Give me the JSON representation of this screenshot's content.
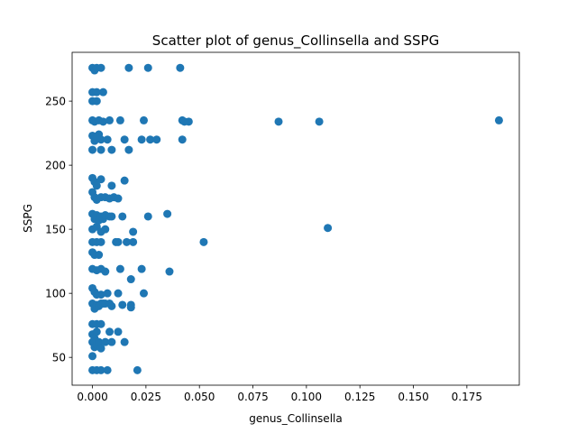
{
  "chart_data": {
    "type": "scatter",
    "title": "Scatter plot of genus_Collinsella and SSPG",
    "xlabel": "genus_Collinsella",
    "ylabel": "SSPG",
    "xlim": [
      -0.0095,
      0.1995
    ],
    "ylim": [
      28.3,
      288.1
    ],
    "xticks": [
      0.0,
      0.025,
      0.05,
      0.075,
      0.1,
      0.125,
      0.15,
      0.175
    ],
    "xtick_labels": [
      "0.000",
      "0.025",
      "0.050",
      "0.075",
      "0.100",
      "0.125",
      "0.150",
      "0.175"
    ],
    "yticks": [
      50,
      100,
      150,
      200,
      250
    ],
    "ytick_labels": [
      "50",
      "100",
      "150",
      "200",
      "250"
    ],
    "grid": false,
    "marker_color": "#1f77b4",
    "series": [
      {
        "points": [
          {
            "x": 0.0,
            "y": 276
          },
          {
            "x": 0.001,
            "y": 274
          },
          {
            "x": 0.002,
            "y": 276
          },
          {
            "x": 0.004,
            "y": 276
          },
          {
            "x": 0.017,
            "y": 276
          },
          {
            "x": 0.026,
            "y": 276
          },
          {
            "x": 0.041,
            "y": 276
          },
          {
            "x": 0.0,
            "y": 257
          },
          {
            "x": 0.002,
            "y": 257
          },
          {
            "x": 0.005,
            "y": 257
          },
          {
            "x": 0.0,
            "y": 250
          },
          {
            "x": 0.002,
            "y": 250
          },
          {
            "x": 0.0,
            "y": 235
          },
          {
            "x": 0.001,
            "y": 234
          },
          {
            "x": 0.003,
            "y": 235
          },
          {
            "x": 0.005,
            "y": 234
          },
          {
            "x": 0.008,
            "y": 235
          },
          {
            "x": 0.013,
            "y": 235
          },
          {
            "x": 0.024,
            "y": 235
          },
          {
            "x": 0.042,
            "y": 235
          },
          {
            "x": 0.043,
            "y": 234
          },
          {
            "x": 0.045,
            "y": 234
          },
          {
            "x": 0.087,
            "y": 234
          },
          {
            "x": 0.106,
            "y": 234
          },
          {
            "x": 0.19,
            "y": 235
          },
          {
            "x": 0.0,
            "y": 223
          },
          {
            "x": 0.001,
            "y": 219
          },
          {
            "x": 0.003,
            "y": 224
          },
          {
            "x": 0.004,
            "y": 220
          },
          {
            "x": 0.002,
            "y": 221
          },
          {
            "x": 0.007,
            "y": 220
          },
          {
            "x": 0.015,
            "y": 220
          },
          {
            "x": 0.023,
            "y": 220
          },
          {
            "x": 0.027,
            "y": 220
          },
          {
            "x": 0.03,
            "y": 220
          },
          {
            "x": 0.042,
            "y": 220
          },
          {
            "x": 0.0,
            "y": 212
          },
          {
            "x": 0.004,
            "y": 212
          },
          {
            "x": 0.009,
            "y": 212
          },
          {
            "x": 0.017,
            "y": 212
          },
          {
            "x": 0.0,
            "y": 190
          },
          {
            "x": 0.001,
            "y": 187
          },
          {
            "x": 0.002,
            "y": 184
          },
          {
            "x": 0.004,
            "y": 189
          },
          {
            "x": 0.009,
            "y": 184
          },
          {
            "x": 0.015,
            "y": 188
          },
          {
            "x": 0.0,
            "y": 179
          },
          {
            "x": 0.001,
            "y": 175
          },
          {
            "x": 0.002,
            "y": 173
          },
          {
            "x": 0.004,
            "y": 175
          },
          {
            "x": 0.006,
            "y": 175
          },
          {
            "x": 0.008,
            "y": 174
          },
          {
            "x": 0.01,
            "y": 175
          },
          {
            "x": 0.012,
            "y": 174
          },
          {
            "x": 0.0,
            "y": 162
          },
          {
            "x": 0.001,
            "y": 158
          },
          {
            "x": 0.002,
            "y": 161
          },
          {
            "x": 0.003,
            "y": 157
          },
          {
            "x": 0.004,
            "y": 160
          },
          {
            "x": 0.005,
            "y": 158
          },
          {
            "x": 0.006,
            "y": 161
          },
          {
            "x": 0.008,
            "y": 160
          },
          {
            "x": 0.009,
            "y": 160
          },
          {
            "x": 0.014,
            "y": 160
          },
          {
            "x": 0.026,
            "y": 160
          },
          {
            "x": 0.035,
            "y": 162
          },
          {
            "x": 0.0,
            "y": 150
          },
          {
            "x": 0.002,
            "y": 152
          },
          {
            "x": 0.004,
            "y": 148
          },
          {
            "x": 0.006,
            "y": 150
          },
          {
            "x": 0.019,
            "y": 148
          },
          {
            "x": 0.11,
            "y": 151
          },
          {
            "x": 0.0,
            "y": 140
          },
          {
            "x": 0.002,
            "y": 140
          },
          {
            "x": 0.004,
            "y": 140
          },
          {
            "x": 0.011,
            "y": 140
          },
          {
            "x": 0.012,
            "y": 140
          },
          {
            "x": 0.016,
            "y": 140
          },
          {
            "x": 0.019,
            "y": 140
          },
          {
            "x": 0.052,
            "y": 140
          },
          {
            "x": 0.0,
            "y": 132
          },
          {
            "x": 0.001,
            "y": 130
          },
          {
            "x": 0.003,
            "y": 130
          },
          {
            "x": 0.0,
            "y": 119
          },
          {
            "x": 0.002,
            "y": 118
          },
          {
            "x": 0.004,
            "y": 119
          },
          {
            "x": 0.006,
            "y": 117
          },
          {
            "x": 0.013,
            "y": 119
          },
          {
            "x": 0.018,
            "y": 111
          },
          {
            "x": 0.023,
            "y": 119
          },
          {
            "x": 0.036,
            "y": 117
          },
          {
            "x": 0.0,
            "y": 104
          },
          {
            "x": 0.001,
            "y": 101
          },
          {
            "x": 0.002,
            "y": 99
          },
          {
            "x": 0.004,
            "y": 99
          },
          {
            "x": 0.007,
            "y": 100
          },
          {
            "x": 0.012,
            "y": 100
          },
          {
            "x": 0.024,
            "y": 100
          },
          {
            "x": 0.0,
            "y": 92
          },
          {
            "x": 0.001,
            "y": 88
          },
          {
            "x": 0.002,
            "y": 91
          },
          {
            "x": 0.003,
            "y": 90
          },
          {
            "x": 0.004,
            "y": 92
          },
          {
            "x": 0.005,
            "y": 92
          },
          {
            "x": 0.006,
            "y": 92
          },
          {
            "x": 0.008,
            "y": 92
          },
          {
            "x": 0.009,
            "y": 90
          },
          {
            "x": 0.014,
            "y": 91
          },
          {
            "x": 0.018,
            "y": 91
          },
          {
            "x": 0.018,
            "y": 89
          },
          {
            "x": 0.0,
            "y": 76
          },
          {
            "x": 0.002,
            "y": 76
          },
          {
            "x": 0.004,
            "y": 76
          },
          {
            "x": 0.0,
            "y": 68
          },
          {
            "x": 0.001,
            "y": 65
          },
          {
            "x": 0.002,
            "y": 70
          },
          {
            "x": 0.008,
            "y": 70
          },
          {
            "x": 0.012,
            "y": 70
          },
          {
            "x": 0.0,
            "y": 62
          },
          {
            "x": 0.001,
            "y": 58
          },
          {
            "x": 0.002,
            "y": 60
          },
          {
            "x": 0.003,
            "y": 62
          },
          {
            "x": 0.004,
            "y": 57
          },
          {
            "x": 0.006,
            "y": 62
          },
          {
            "x": 0.009,
            "y": 62
          },
          {
            "x": 0.015,
            "y": 62
          },
          {
            "x": 0.0,
            "y": 51
          },
          {
            "x": 0.0,
            "y": 40
          },
          {
            "x": 0.002,
            "y": 40
          },
          {
            "x": 0.004,
            "y": 40
          },
          {
            "x": 0.007,
            "y": 40
          },
          {
            "x": 0.021,
            "y": 40
          }
        ]
      }
    ]
  }
}
